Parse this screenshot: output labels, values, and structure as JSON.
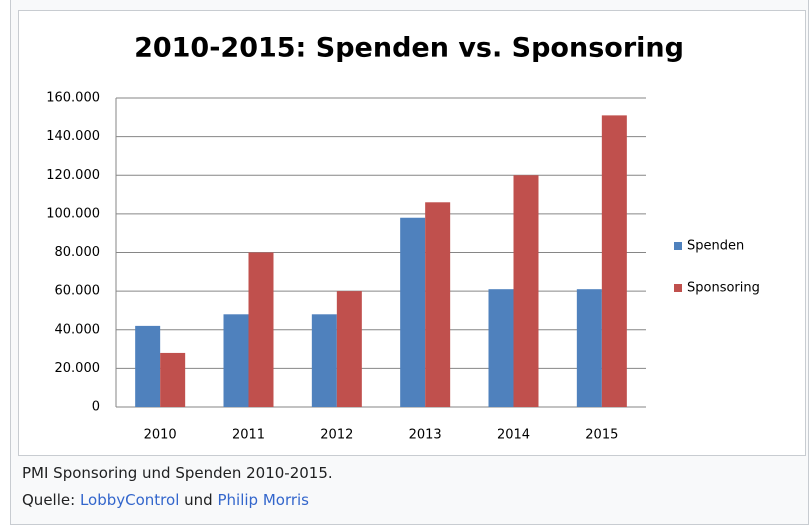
{
  "chart_data": {
    "type": "bar",
    "title": "2010-2015: Spenden vs. Sponsoring",
    "categories": [
      "2010",
      "2011",
      "2012",
      "2013",
      "2014",
      "2015"
    ],
    "series": [
      {
        "name": "Spenden",
        "color": "#4f81bd",
        "values": [
          42000,
          48000,
          48000,
          98000,
          61000,
          61000
        ]
      },
      {
        "name": "Sponsoring",
        "color": "#c0504d",
        "values": [
          28000,
          80000,
          60000,
          106000,
          120000,
          151000
        ]
      }
    ],
    "ylim": [
      0,
      160000
    ],
    "yticks": [
      0,
      {
        "value": 20000,
        "label": "20.000"
      },
      {
        "value": 40000,
        "label": "40.000"
      },
      {
        "value": 60000,
        "label": "60.000"
      },
      {
        "value": 80000,
        "label": "80.000"
      },
      {
        "value": 100000,
        "label": "100.000"
      },
      {
        "value": 120000,
        "label": "120.000"
      },
      {
        "value": 140000,
        "label": "140.000"
      },
      {
        "value": 160000,
        "label": "160.000"
      }
    ],
    "grid": true,
    "legend": "right"
  },
  "caption": {
    "text": "PMI Sponsoring und Spenden 2010-2015.",
    "source_prefix": "Quelle:",
    "link1": "LobbyControl",
    "joiner": "und",
    "link2": "Philip Morris"
  }
}
